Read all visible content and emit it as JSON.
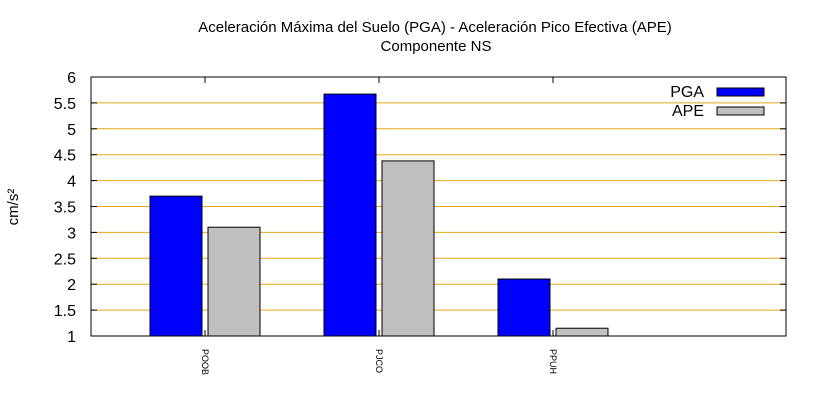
{
  "chart_data": {
    "type": "bar",
    "title": "Aceleración Máxima del Suelo (PGA) -  Aceleración Pico Efectiva (APE)",
    "subtitle": "Componente NS",
    "ylabel": "cm/s²",
    "xlabel": "",
    "ylim": [
      1,
      6
    ],
    "yticks": [
      1,
      1.5,
      2,
      2.5,
      3,
      3.5,
      4,
      4.5,
      5,
      5.5,
      6
    ],
    "grid": true,
    "legend_position": "top-right",
    "categories": [
      "POOB",
      "PJCO",
      "PPUH"
    ],
    "series": [
      {
        "name": "PGA",
        "values": [
          3.7,
          5.67,
          2.1
        ],
        "color": "#0000ff"
      },
      {
        "name": "APE",
        "values": [
          3.1,
          4.38,
          1.15
        ],
        "color": "#c0c0c0"
      }
    ],
    "grid_color": "#e6a817"
  }
}
